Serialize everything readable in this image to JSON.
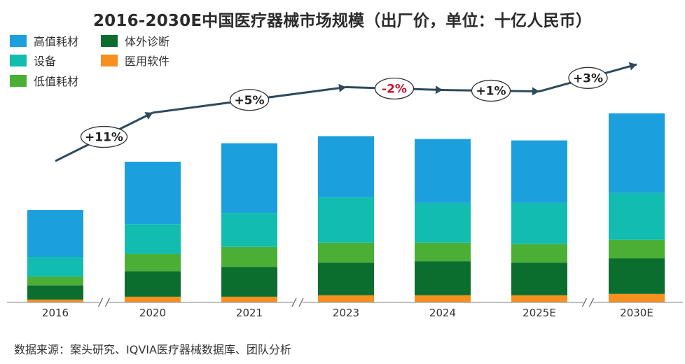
{
  "title": "2016-2030E中国医疗器械市场规模（出厂价，单位：十亿人民币）",
  "source": "数据来源：案头研究、IQVIA医疗器械数据库、团队分析",
  "legend": [
    {
      "label": "高值耗材",
      "color": "#1BA0DD"
    },
    {
      "label": "体外诊断",
      "color": "#0B6E2E"
    },
    {
      "label": "设备",
      "color": "#12BDB0"
    },
    {
      "label": "医用软件",
      "color": "#F7901E"
    },
    {
      "label": "低值耗材",
      "color": "#4AAF34"
    }
  ],
  "chart_data": {
    "type": "bar",
    "stacked": true,
    "categories": [
      "2016",
      "2020",
      "2021",
      "2023",
      "2024",
      "2025E",
      "2030E"
    ],
    "axis_breaks_after": [
      "2016",
      "2021",
      "2025E"
    ],
    "series": [
      {
        "name": "医用软件",
        "color": "#F7901E",
        "values": [
          2,
          4,
          4,
          5,
          5,
          5,
          6
        ]
      },
      {
        "name": "体外诊断",
        "color": "#0B6E2E",
        "values": [
          10,
          18,
          21,
          23,
          24,
          23,
          25
        ]
      },
      {
        "name": "低值耗材",
        "color": "#4AAF34",
        "values": [
          6,
          12,
          14,
          14,
          13,
          13,
          13
        ]
      },
      {
        "name": "设备",
        "color": "#12BDB0",
        "values": [
          14,
          21,
          24,
          32,
          28,
          29,
          33
        ]
      },
      {
        "name": "高值耗材",
        "color": "#1BA0DD",
        "values": [
          33,
          44,
          49,
          43,
          45,
          44,
          56
        ]
      }
    ],
    "growth_labels": [
      {
        "text": "+11%",
        "color": "#222222"
      },
      {
        "text": "+5%",
        "color": "#222222"
      },
      {
        "text": "-2%",
        "color": "#C8102E"
      },
      {
        "text": "+1%",
        "color": "#222222"
      },
      {
        "text": "+3%",
        "color": "#222222"
      }
    ],
    "trend_line_color": "#2E4A5E",
    "grid": false,
    "legend_position": "top-left"
  }
}
